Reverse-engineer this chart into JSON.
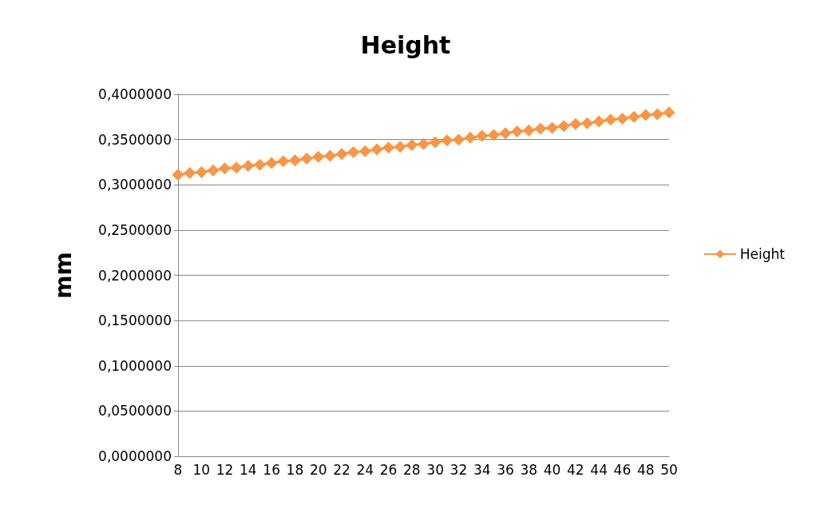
{
  "chart_data": {
    "type": "line",
    "title": "Height",
    "ylabel": "mm",
    "categories": [
      "8",
      null,
      "10",
      null,
      "12",
      null,
      "14",
      null,
      "16",
      null,
      "18",
      null,
      "20",
      null,
      "22",
      null,
      "24",
      null,
      "26",
      null,
      "28",
      null,
      "30",
      null,
      "32",
      null,
      "34",
      null,
      "36",
      null,
      "38",
      null,
      "40",
      null,
      "42",
      null,
      "44",
      null,
      "46",
      null,
      "48",
      null,
      "50"
    ],
    "series": [
      {
        "name": "Height",
        "color": "#f79646",
        "values": [
          0.311,
          0.313,
          0.314,
          0.316,
          0.318,
          0.319,
          0.321,
          0.322,
          0.324,
          0.326,
          0.327,
          0.329,
          0.331,
          0.332,
          0.334,
          0.336,
          0.337,
          0.339,
          0.341,
          0.342,
          0.344,
          0.345,
          0.347,
          0.349,
          0.35,
          0.352,
          0.354,
          0.355,
          0.357,
          0.359,
          0.36,
          0.362,
          0.363,
          0.365,
          0.367,
          0.368,
          0.37,
          0.372,
          0.373,
          0.375,
          0.377,
          0.378,
          0.38
        ]
      }
    ],
    "ylim": [
      0,
      0.4
    ],
    "yticks": [
      {
        "value": 0,
        "label": "0,0000000"
      },
      {
        "value": 0.05,
        "label": "0,0500000"
      },
      {
        "value": 0.1,
        "label": "0,1000000"
      },
      {
        "value": 0.15,
        "label": "0,1500000"
      },
      {
        "value": 0.2,
        "label": "0,2000000"
      },
      {
        "value": 0.25,
        "label": "0,2500000"
      },
      {
        "value": 0.3,
        "label": "0,3000000"
      },
      {
        "value": 0.35,
        "label": "0,3500000"
      },
      {
        "value": 0.4,
        "label": "0,4000000"
      }
    ],
    "grid": "y",
    "legend": "right",
    "marker": "diamond",
    "line_style": "solid"
  }
}
